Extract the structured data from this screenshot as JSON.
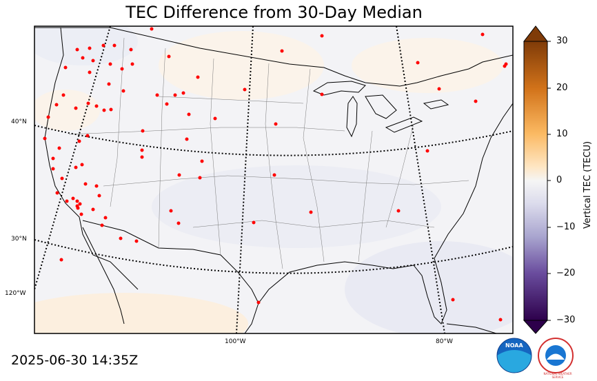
{
  "title": "TEC Difference from 30-Day Median",
  "timestamp": "2025-06-30 14:35Z",
  "lat_labels": [
    "40°N",
    "30°N"
  ],
  "lon_labels": [
    "120°W",
    "100°W",
    "80°W"
  ],
  "colorbar": {
    "label": "Vertical TEC (TECU)",
    "ticks": [
      "30",
      "20",
      "10",
      "0",
      "−10",
      "−20",
      "−30"
    ],
    "min": -30,
    "max": 30,
    "colors": {
      "max": "#7f3b08",
      "positive_light": "#fee0b6",
      "zero": "#f7f7f7",
      "negative_light": "#d8daeb",
      "min": "#2d004b"
    }
  },
  "logos": {
    "noaa": "NOAA",
    "nws": "NATIONAL WEATHER SERVICE"
  },
  "map_elements": {
    "observation_marker_color": "#ff0000",
    "projection_graticule": "dotted",
    "background_field_color": "#f3f3f6"
  }
}
